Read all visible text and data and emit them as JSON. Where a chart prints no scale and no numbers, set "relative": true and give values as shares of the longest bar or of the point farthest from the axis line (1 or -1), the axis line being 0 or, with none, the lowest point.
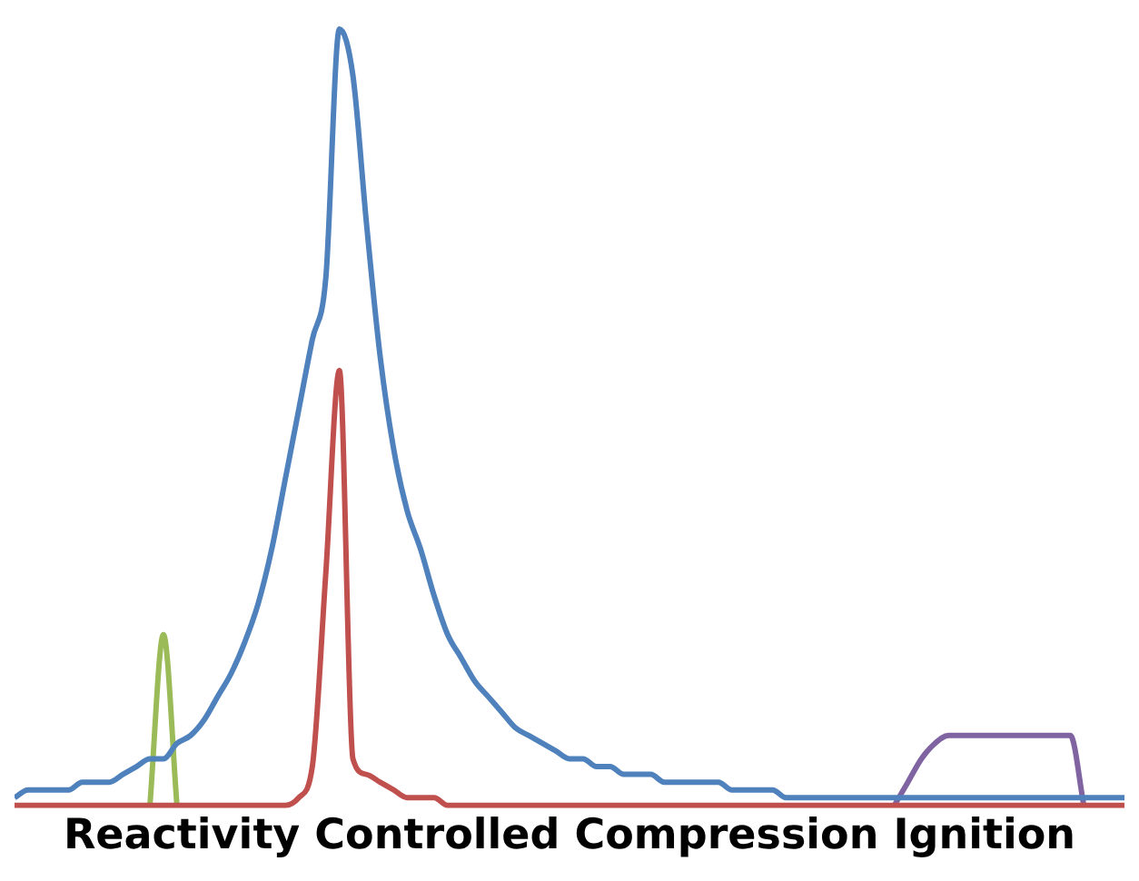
{
  "chart_data": {
    "type": "line",
    "title": "Reactivity Controlled Compression Ignition",
    "relative": true,
    "legend": false,
    "marker": "none",
    "line_style": "solid",
    "categories": [
      null,
      null,
      null,
      null,
      null,
      null,
      null,
      null,
      null,
      null,
      null,
      null,
      null,
      null,
      null,
      null,
      null,
      null,
      null,
      null,
      null,
      null,
      null,
      null,
      null,
      null,
      null,
      null,
      null,
      null,
      null,
      null,
      null,
      null,
      null,
      null,
      null,
      null,
      null,
      null,
      null,
      null,
      null,
      null,
      null,
      null,
      null,
      null,
      null,
      null,
      null,
      null,
      null,
      null,
      null,
      null,
      null,
      null,
      null,
      null,
      null,
      null,
      null,
      null,
      null,
      null,
      null,
      null,
      null,
      null,
      null,
      null,
      null,
      null,
      null,
      null,
      null,
      null,
      null,
      null,
      null,
      null,
      null
    ],
    "series": [
      {
        "color": "#4f81bd",
        "values": [
          0.01,
          0.02,
          0.02,
          0.02,
          0.02,
          0.03,
          0.03,
          0.03,
          0.04,
          0.05,
          0.06,
          0.06,
          0.08,
          0.09,
          0.11,
          0.14,
          0.17,
          0.21,
          0.26,
          0.33,
          0.42,
          0.51,
          0.6,
          0.68,
          1.0,
          0.94,
          0.75,
          0.58,
          0.46,
          0.38,
          0.33,
          0.27,
          0.22,
          0.19,
          0.16,
          0.14,
          0.12,
          0.1,
          0.09,
          0.08,
          0.07,
          0.06,
          0.06,
          0.05,
          0.05,
          0.04,
          0.04,
          0.04,
          0.03,
          0.03,
          0.03,
          0.03,
          0.03,
          0.02,
          0.02,
          0.02,
          0.02,
          0.01,
          0.01,
          0.01,
          0.01,
          0.01,
          0.01,
          0.01,
          0.01,
          0.01,
          0.01,
          0.01,
          0.01,
          0.01,
          0.01,
          0.01,
          0.01,
          0.01,
          0.01,
          0.01,
          0.01,
          0.01,
          0.01,
          0.01,
          0.01,
          0.01,
          0.01
        ]
      },
      {
        "color": "#c0504d",
        "values": [
          0,
          0,
          0,
          0,
          0,
          0,
          0,
          0,
          0,
          0,
          0,
          0,
          0,
          0,
          0,
          0,
          0,
          0,
          0,
          0,
          0,
          0.01,
          0.05,
          0.3,
          0.56,
          0.06,
          0.04,
          0.03,
          0.02,
          0.01,
          0.01,
          0.01,
          0,
          0,
          0,
          0,
          0,
          0,
          0,
          0,
          0,
          0,
          0,
          0,
          0,
          0,
          0,
          0,
          0,
          0,
          0,
          0,
          0,
          0,
          0,
          0,
          0,
          0,
          0,
          0,
          0,
          0,
          0,
          0,
          0,
          0,
          0,
          0,
          0,
          0,
          0,
          0,
          0,
          0,
          0,
          0,
          0,
          0,
          0,
          0,
          0,
          0,
          0
        ]
      },
      {
        "color": "#9bbb59",
        "values": [
          null,
          null,
          null,
          null,
          null,
          null,
          null,
          null,
          null,
          null,
          0,
          0.22,
          0,
          null,
          null,
          null,
          null,
          null,
          null,
          null,
          null,
          null,
          null,
          null,
          null,
          null,
          null,
          null,
          null,
          null,
          null,
          null,
          null,
          null,
          null,
          null,
          null,
          null,
          null,
          null,
          null,
          null,
          null,
          null,
          null,
          null,
          null,
          null,
          null,
          null,
          null,
          null,
          null,
          null,
          null,
          null,
          null,
          null,
          null,
          null,
          null,
          null,
          null,
          null,
          null,
          null,
          null,
          null,
          null,
          null,
          null,
          null,
          null,
          null,
          null,
          null,
          null,
          null,
          null,
          null,
          null,
          null,
          null
        ]
      },
      {
        "color": "#8064a2",
        "values": [
          null,
          null,
          null,
          null,
          null,
          null,
          null,
          null,
          null,
          null,
          null,
          null,
          null,
          null,
          null,
          null,
          null,
          null,
          null,
          null,
          null,
          null,
          null,
          null,
          null,
          null,
          null,
          null,
          null,
          null,
          null,
          null,
          null,
          null,
          null,
          null,
          null,
          null,
          null,
          null,
          null,
          null,
          null,
          null,
          null,
          null,
          null,
          null,
          null,
          null,
          null,
          null,
          null,
          null,
          null,
          null,
          null,
          null,
          null,
          null,
          null,
          null,
          null,
          null,
          null,
          0,
          0.03,
          0.06,
          0.08,
          0.09,
          0.09,
          0.09,
          0.09,
          0.09,
          0.09,
          0.09,
          0.09,
          0.09,
          0.09,
          0,
          null,
          null,
          null
        ]
      }
    ]
  }
}
